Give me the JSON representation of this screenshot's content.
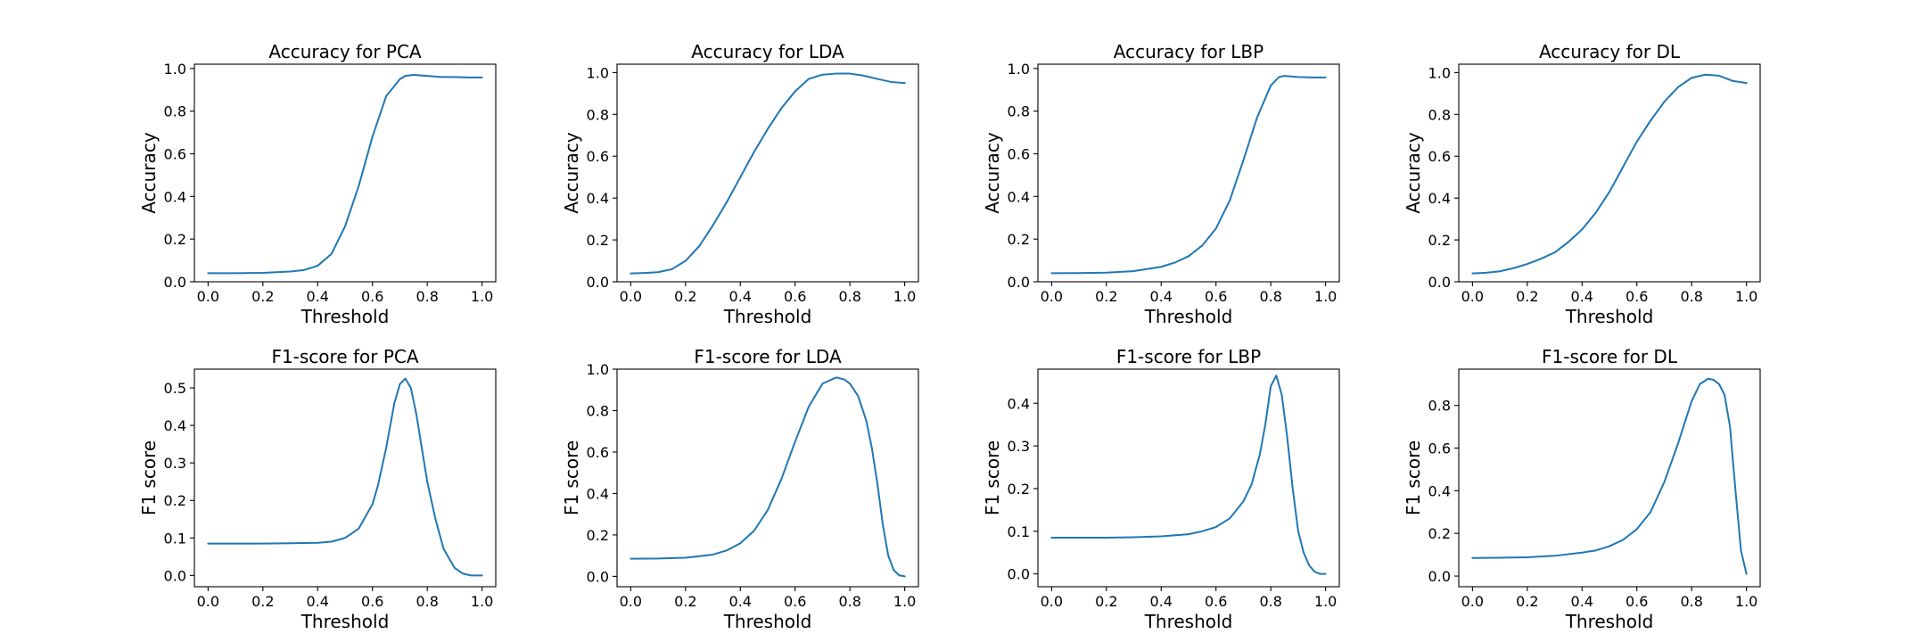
{
  "style": {
    "line_color": "#1f77b4",
    "background": "#ffffff"
  },
  "chart_data": [
    {
      "type": "line",
      "title": "Accuracy for PCA",
      "xlabel": "Threshold",
      "ylabel": "Accuracy",
      "xlim": [
        -0.05,
        1.05
      ],
      "ylim": [
        0,
        1.02
      ],
      "xticks": [
        0.0,
        0.2,
        0.4,
        0.6,
        0.8,
        1.0
      ],
      "yticks": [
        0.0,
        0.2,
        0.4,
        0.6,
        0.8,
        1.0
      ],
      "tick_decimals": 1,
      "series": [
        {
          "x": [
            0.0,
            0.1,
            0.2,
            0.3,
            0.35,
            0.4,
            0.45,
            0.5,
            0.55,
            0.6,
            0.65,
            0.7,
            0.72,
            0.75,
            0.8,
            0.85,
            0.9,
            0.95,
            1.0
          ],
          "y": [
            0.04,
            0.04,
            0.042,
            0.048,
            0.055,
            0.075,
            0.13,
            0.26,
            0.45,
            0.68,
            0.87,
            0.95,
            0.965,
            0.97,
            0.965,
            0.96,
            0.96,
            0.958,
            0.958
          ]
        }
      ]
    },
    {
      "type": "line",
      "title": "Accuracy for LDA",
      "xlabel": "Threshold",
      "ylabel": "Accuracy",
      "xlim": [
        -0.05,
        1.05
      ],
      "ylim": [
        0,
        1.04
      ],
      "xticks": [
        0.0,
        0.2,
        0.4,
        0.6,
        0.8,
        1.0
      ],
      "yticks": [
        0.0,
        0.2,
        0.4,
        0.6,
        0.8,
        1.0
      ],
      "tick_decimals": 1,
      "series": [
        {
          "x": [
            0.0,
            0.05,
            0.1,
            0.15,
            0.2,
            0.25,
            0.3,
            0.35,
            0.4,
            0.45,
            0.5,
            0.55,
            0.6,
            0.65,
            0.7,
            0.75,
            0.8,
            0.85,
            0.9,
            0.95,
            1.0
          ],
          "y": [
            0.04,
            0.042,
            0.046,
            0.06,
            0.1,
            0.17,
            0.27,
            0.38,
            0.5,
            0.62,
            0.73,
            0.83,
            0.91,
            0.97,
            0.99,
            0.995,
            0.995,
            0.985,
            0.97,
            0.955,
            0.95
          ]
        }
      ]
    },
    {
      "type": "line",
      "title": "Accuracy for LBP",
      "xlabel": "Threshold",
      "ylabel": "Accuracy",
      "xlim": [
        -0.05,
        1.05
      ],
      "ylim": [
        0,
        1.02
      ],
      "xticks": [
        0.0,
        0.2,
        0.4,
        0.6,
        0.8,
        1.0
      ],
      "yticks": [
        0.0,
        0.2,
        0.4,
        0.6,
        0.8,
        1.0
      ],
      "tick_decimals": 1,
      "series": [
        {
          "x": [
            0.0,
            0.1,
            0.2,
            0.3,
            0.4,
            0.45,
            0.5,
            0.55,
            0.6,
            0.65,
            0.7,
            0.75,
            0.8,
            0.83,
            0.85,
            0.9,
            0.95,
            1.0
          ],
          "y": [
            0.04,
            0.041,
            0.043,
            0.05,
            0.07,
            0.09,
            0.12,
            0.17,
            0.25,
            0.38,
            0.57,
            0.77,
            0.92,
            0.96,
            0.965,
            0.96,
            0.958,
            0.958
          ]
        }
      ]
    },
    {
      "type": "line",
      "title": "Accuracy for DL",
      "xlabel": "Threshold",
      "ylabel": "Accuracy",
      "xlim": [
        -0.05,
        1.05
      ],
      "ylim": [
        0,
        1.04
      ],
      "xticks": [
        0.0,
        0.2,
        0.4,
        0.6,
        0.8,
        1.0
      ],
      "yticks": [
        0.0,
        0.2,
        0.4,
        0.6,
        0.8,
        1.0
      ],
      "tick_decimals": 1,
      "series": [
        {
          "x": [
            0.0,
            0.05,
            0.1,
            0.15,
            0.2,
            0.25,
            0.3,
            0.35,
            0.4,
            0.45,
            0.5,
            0.55,
            0.6,
            0.65,
            0.7,
            0.75,
            0.8,
            0.85,
            0.9,
            0.95,
            1.0
          ],
          "y": [
            0.04,
            0.043,
            0.05,
            0.065,
            0.085,
            0.11,
            0.14,
            0.19,
            0.25,
            0.33,
            0.43,
            0.55,
            0.67,
            0.77,
            0.86,
            0.93,
            0.975,
            0.99,
            0.985,
            0.96,
            0.95
          ]
        }
      ]
    },
    {
      "type": "line",
      "title": "F1-score for PCA",
      "xlabel": "Threshold",
      "ylabel": "F1 score",
      "xlim": [
        -0.05,
        1.05
      ],
      "ylim": [
        -0.03,
        0.55
      ],
      "xticks": [
        0.0,
        0.2,
        0.4,
        0.6,
        0.8,
        1.0
      ],
      "yticks": [
        0.0,
        0.1,
        0.2,
        0.3,
        0.4,
        0.5
      ],
      "tick_decimals": 1,
      "series": [
        {
          "x": [
            0.0,
            0.1,
            0.2,
            0.3,
            0.4,
            0.45,
            0.5,
            0.55,
            0.6,
            0.62,
            0.65,
            0.68,
            0.7,
            0.72,
            0.74,
            0.76,
            0.78,
            0.8,
            0.83,
            0.86,
            0.9,
            0.93,
            0.96,
            1.0
          ],
          "y": [
            0.085,
            0.085,
            0.085,
            0.086,
            0.087,
            0.09,
            0.1,
            0.125,
            0.19,
            0.24,
            0.34,
            0.46,
            0.51,
            0.525,
            0.5,
            0.43,
            0.34,
            0.25,
            0.15,
            0.07,
            0.02,
            0.005,
            0.0,
            0.0
          ]
        }
      ]
    },
    {
      "type": "line",
      "title": "F1-score for LDA",
      "xlabel": "Threshold",
      "ylabel": "F1 score",
      "xlim": [
        -0.05,
        1.05
      ],
      "ylim": [
        -0.05,
        1.0
      ],
      "xticks": [
        0.0,
        0.2,
        0.4,
        0.6,
        0.8,
        1.0
      ],
      "yticks": [
        0.0,
        0.2,
        0.4,
        0.6,
        0.8,
        1.0
      ],
      "tick_decimals": 1,
      "series": [
        {
          "x": [
            0.0,
            0.1,
            0.2,
            0.3,
            0.35,
            0.4,
            0.45,
            0.5,
            0.55,
            0.6,
            0.65,
            0.7,
            0.75,
            0.78,
            0.8,
            0.83,
            0.86,
            0.88,
            0.9,
            0.92,
            0.94,
            0.96,
            0.98,
            1.0
          ],
          "y": [
            0.085,
            0.086,
            0.09,
            0.105,
            0.125,
            0.16,
            0.22,
            0.32,
            0.47,
            0.65,
            0.82,
            0.93,
            0.96,
            0.95,
            0.93,
            0.87,
            0.75,
            0.62,
            0.45,
            0.25,
            0.1,
            0.03,
            0.005,
            0.0
          ]
        }
      ]
    },
    {
      "type": "line",
      "title": "F1-score for LBP",
      "xlabel": "Threshold",
      "ylabel": "F1 score",
      "xlim": [
        -0.05,
        1.05
      ],
      "ylim": [
        -0.03,
        0.48
      ],
      "xticks": [
        0.0,
        0.2,
        0.4,
        0.6,
        0.8,
        1.0
      ],
      "yticks": [
        0.0,
        0.1,
        0.2,
        0.3,
        0.4
      ],
      "tick_decimals": 1,
      "series": [
        {
          "x": [
            0.0,
            0.1,
            0.2,
            0.3,
            0.4,
            0.5,
            0.55,
            0.6,
            0.65,
            0.7,
            0.73,
            0.76,
            0.78,
            0.8,
            0.82,
            0.84,
            0.86,
            0.88,
            0.9,
            0.92,
            0.94,
            0.96,
            0.98,
            1.0
          ],
          "y": [
            0.085,
            0.085,
            0.085,
            0.086,
            0.088,
            0.093,
            0.1,
            0.11,
            0.13,
            0.17,
            0.21,
            0.28,
            0.35,
            0.44,
            0.465,
            0.42,
            0.32,
            0.2,
            0.1,
            0.05,
            0.02,
            0.005,
            0.0,
            0.0
          ]
        }
      ]
    },
    {
      "type": "line",
      "title": "F1-score for DL",
      "xlabel": "Threshold",
      "ylabel": "F1 score",
      "xlim": [
        -0.05,
        1.05
      ],
      "ylim": [
        -0.05,
        0.97
      ],
      "xticks": [
        0.0,
        0.2,
        0.4,
        0.6,
        0.8,
        1.0
      ],
      "yticks": [
        0.0,
        0.2,
        0.4,
        0.6,
        0.8
      ],
      "tick_decimals": 1,
      "series": [
        {
          "x": [
            0.0,
            0.1,
            0.2,
            0.3,
            0.4,
            0.45,
            0.5,
            0.55,
            0.6,
            0.65,
            0.7,
            0.75,
            0.8,
            0.83,
            0.86,
            0.88,
            0.9,
            0.92,
            0.94,
            0.96,
            0.98,
            1.0
          ],
          "y": [
            0.085,
            0.086,
            0.088,
            0.095,
            0.11,
            0.12,
            0.14,
            0.17,
            0.22,
            0.3,
            0.44,
            0.62,
            0.82,
            0.9,
            0.925,
            0.92,
            0.9,
            0.85,
            0.7,
            0.4,
            0.12,
            0.01
          ]
        }
      ]
    }
  ]
}
